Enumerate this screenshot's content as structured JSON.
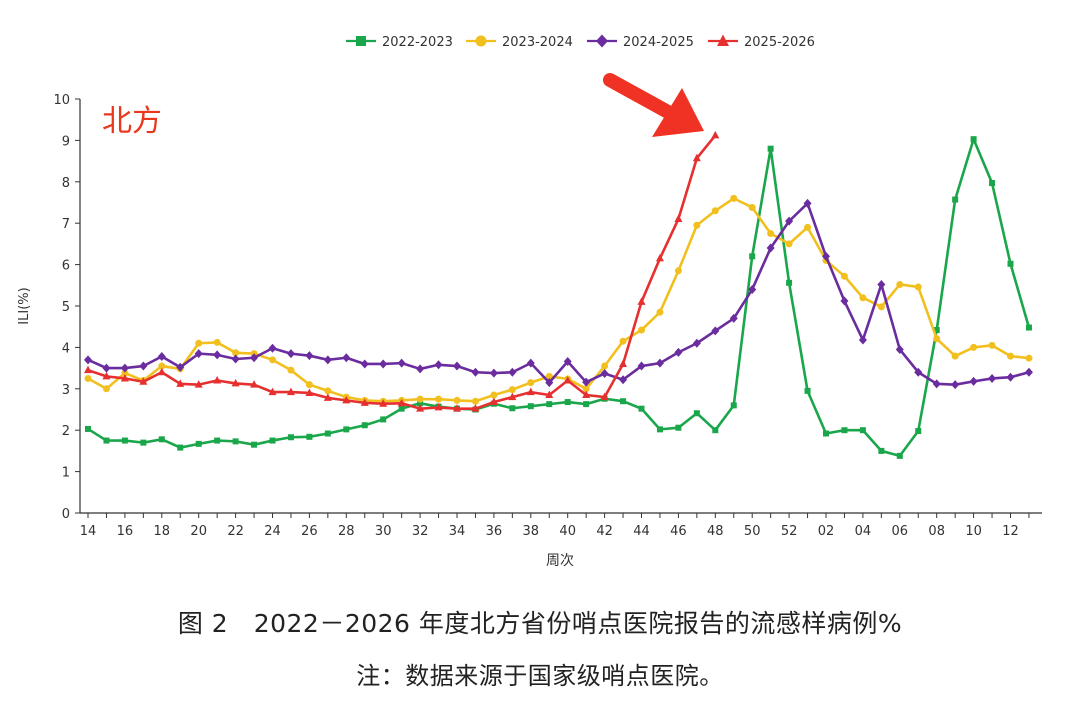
{
  "chart_data": {
    "type": "line",
    "region_label": "北方",
    "xlabel": "周次",
    "ylabel": "ILI(%)",
    "ylim": [
      0,
      10
    ],
    "yticks": [
      "0",
      "1",
      "2",
      "3",
      "4",
      "5",
      "6",
      "7",
      "8",
      "9",
      "10"
    ],
    "categories": [
      "14",
      "15",
      "16",
      "17",
      "18",
      "19",
      "20",
      "21",
      "22",
      "23",
      "24",
      "25",
      "26",
      "27",
      "28",
      "29",
      "30",
      "31",
      "32",
      "33",
      "34",
      "35",
      "36",
      "37",
      "38",
      "39",
      "40",
      "41",
      "42",
      "43",
      "44",
      "45",
      "46",
      "47",
      "48",
      "49",
      "50",
      "51",
      "52",
      "01",
      "02",
      "03",
      "04",
      "05",
      "06",
      "07",
      "08",
      "09",
      "10",
      "11",
      "12",
      "13"
    ],
    "tick_labels": [
      "14",
      "16",
      "18",
      "20",
      "22",
      "24",
      "26",
      "28",
      "30",
      "32",
      "34",
      "36",
      "38",
      "40",
      "42",
      "44",
      "46",
      "48",
      "50",
      "52",
      "02",
      "04",
      "06",
      "08",
      "10",
      "12"
    ],
    "legend_position": "top-center",
    "grid": false,
    "series": [
      {
        "name": "2022-2023",
        "color": "#1aa64a",
        "marker": "square",
        "values": [
          2.03,
          1.75,
          1.75,
          1.7,
          1.78,
          1.58,
          1.67,
          1.75,
          1.73,
          1.65,
          1.75,
          1.83,
          1.84,
          1.92,
          2.02,
          2.12,
          2.26,
          2.52,
          2.65,
          2.57,
          2.52,
          2.5,
          2.64,
          2.53,
          2.58,
          2.63,
          2.68,
          2.63,
          2.76,
          2.7,
          2.52,
          2.02,
          2.06,
          2.41,
          2.0,
          2.6,
          6.2,
          8.8,
          5.56,
          2.95,
          1.92,
          2.0,
          2.0,
          1.5,
          1.38,
          1.98,
          4.42,
          7.57,
          9.03,
          7.97,
          6.02,
          4.48
        ]
      },
      {
        "name": "2023-2024",
        "color": "#f2c01e",
        "marker": "circle",
        "values": [
          3.25,
          3.0,
          3.38,
          3.2,
          3.55,
          3.48,
          4.1,
          4.12,
          3.87,
          3.85,
          3.7,
          3.45,
          3.1,
          2.95,
          2.8,
          2.72,
          2.7,
          2.72,
          2.75,
          2.75,
          2.72,
          2.7,
          2.85,
          2.98,
          3.15,
          3.3,
          3.24,
          3.0,
          3.55,
          4.15,
          4.42,
          4.85,
          5.85,
          6.95,
          7.3,
          7.6,
          7.38,
          6.75,
          6.5,
          6.9,
          6.1,
          5.72,
          5.2,
          4.98,
          5.52,
          5.46,
          4.21,
          3.79,
          4.0,
          4.05,
          3.79,
          3.74
        ]
      },
      {
        "name": "2024-2025",
        "color": "#6a2c9e",
        "marker": "diamond",
        "values": [
          3.7,
          3.5,
          3.5,
          3.55,
          3.78,
          3.52,
          3.85,
          3.82,
          3.72,
          3.75,
          3.98,
          3.85,
          3.8,
          3.7,
          3.75,
          3.6,
          3.6,
          3.62,
          3.48,
          3.58,
          3.55,
          3.4,
          3.38,
          3.4,
          3.62,
          3.15,
          3.66,
          3.16,
          3.37,
          3.22,
          3.55,
          3.62,
          3.88,
          4.1,
          4.4,
          4.7,
          5.4,
          6.4,
          7.05,
          7.48,
          6.2,
          5.12,
          4.18,
          5.52,
          3.95,
          3.4,
          3.12,
          3.1,
          3.18,
          3.25,
          3.28,
          3.4
        ]
      },
      {
        "name": "2025-2026",
        "color": "#e63030",
        "marker": "triangle",
        "values": [
          3.45,
          3.3,
          3.25,
          3.17,
          3.4,
          3.12,
          3.1,
          3.2,
          3.13,
          3.1,
          2.92,
          2.92,
          2.9,
          2.78,
          2.72,
          2.66,
          2.64,
          2.65,
          2.52,
          2.55,
          2.52,
          2.52,
          2.68,
          2.8,
          2.92,
          2.85,
          3.2,
          2.85,
          2.8,
          3.6,
          5.1,
          6.15,
          7.1,
          8.57,
          9.12,
          null,
          null,
          null,
          null,
          null,
          null,
          null,
          null,
          null,
          null,
          null,
          null,
          null,
          null,
          null,
          null,
          null
        ]
      }
    ]
  },
  "caption": {
    "main": "图 2　2022－2026 年度北方省份哨点医院报告的流感样病例%",
    "note": "注：数据来源于国家级哨点医院。"
  },
  "colors": {
    "axis": "#333333",
    "arrow": "#f03224",
    "region_label": "#e8391f"
  }
}
